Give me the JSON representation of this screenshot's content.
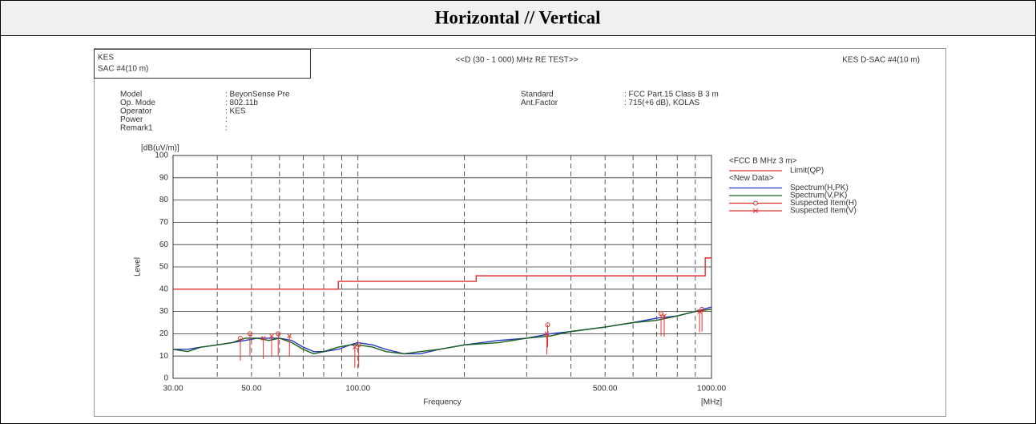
{
  "header": {
    "title": "Horizontal // Vertical"
  },
  "report": {
    "left_box": [
      "KES",
      "SAC #4(10 m)"
    ],
    "test_title": "<<D (30 - 1 000) MHz RE TEST>>",
    "site": "KES D-SAC #4(10 m)",
    "fields_left": [
      {
        "label": "Model",
        "value": ": BeyonSense Pre"
      },
      {
        "label": "Op. Mode",
        "value": ": 802.11b"
      },
      {
        "label": "Operator",
        "value": ": KES"
      },
      {
        "label": "Power",
        "value": ":"
      },
      {
        "label": "Remark1",
        "value": ":"
      }
    ],
    "fields_right": [
      {
        "label": "Standard",
        "value": ": FCC Part.15 Class B 3 m"
      },
      {
        "label": "Ant.Factor",
        "value": ": 715(+6 dB), KOLAS"
      }
    ]
  },
  "chart_data": {
    "type": "line",
    "x_label": "Frequency",
    "x_unit": "[MHz]",
    "y_label": "Level",
    "y_unit": "[dB(uV/m)]",
    "xscale": "log",
    "xlim": [
      30,
      1000
    ],
    "xticks": [
      {
        "value": 30,
        "label": "30.00"
      },
      {
        "value": 50,
        "label": "50.00"
      },
      {
        "value": 100,
        "label": "100.00"
      },
      {
        "value": 500,
        "label": "500.00"
      },
      {
        "value": 1000,
        "label": "1000.00"
      }
    ],
    "xgrid_minor": [
      40,
      60,
      70,
      80,
      90,
      200,
      300,
      400,
      600,
      700,
      800,
      900
    ],
    "ylim": [
      0,
      100
    ],
    "yticks": [
      0,
      10,
      20,
      30,
      40,
      50,
      60,
      70,
      80,
      90,
      100
    ],
    "grid": true,
    "legend_groups": [
      "<FCC B MHz 3 m>",
      "<New Data>"
    ],
    "series": [
      {
        "name": "Limit(QP)",
        "style": "line",
        "legend_group": 0,
        "color": "#e03030",
        "x": [
          30,
          88,
          88,
          216,
          216,
          960,
          960,
          1000
        ],
        "values": [
          40,
          40,
          43.5,
          43.5,
          46,
          46,
          54,
          54
        ]
      },
      {
        "name": "Spectrum(H,PK)",
        "style": "line",
        "legend_group": 1,
        "color": "#2838c8",
        "x": [
          30,
          33,
          36,
          40,
          44,
          48,
          52,
          56,
          60,
          65,
          70,
          75,
          80,
          88,
          95,
          100,
          110,
          120,
          135,
          150,
          170,
          200,
          250,
          300,
          350,
          400,
          500,
          600,
          700,
          800,
          900,
          1000
        ],
        "values": [
          13,
          13,
          14,
          15,
          16,
          17,
          18,
          18,
          18,
          17,
          14,
          12,
          12,
          13,
          15,
          16,
          15,
          13,
          11,
          11,
          13,
          15,
          17,
          18,
          20,
          21,
          23,
          25,
          27,
          28,
          30,
          32
        ]
      },
      {
        "name": "Spectrum(V,PK)",
        "style": "line",
        "legend_group": 1,
        "color": "#1a5e1a",
        "x": [
          30,
          33,
          36,
          40,
          44,
          48,
          52,
          56,
          60,
          65,
          70,
          75,
          80,
          88,
          95,
          100,
          110,
          120,
          135,
          150,
          170,
          200,
          250,
          300,
          350,
          400,
          500,
          600,
          700,
          800,
          900,
          1000
        ],
        "values": [
          13,
          12,
          14,
          15,
          16,
          18,
          18,
          17,
          18,
          16,
          13,
          11,
          12,
          14,
          15,
          15,
          14,
          12,
          11,
          12,
          13,
          15,
          16,
          18,
          19,
          21,
          23,
          25,
          26,
          28,
          30,
          31
        ]
      },
      {
        "name": "Suspected Item(H)",
        "style": "circle",
        "legend_group": 1,
        "color": "#e03030",
        "x": [
          46.5,
          49.5,
          59.5,
          100.5,
          344,
          720,
          940
        ],
        "values": [
          18,
          20,
          20,
          15,
          24,
          29,
          31
        ]
      },
      {
        "name": "Suspected Item(V)",
        "style": "cross",
        "legend_group": 1,
        "color": "#e03030",
        "x": [
          54,
          57,
          64,
          98,
          342,
          735,
          925
        ],
        "values": [
          18,
          19,
          19,
          14,
          20,
          28,
          30
        ]
      }
    ]
  }
}
